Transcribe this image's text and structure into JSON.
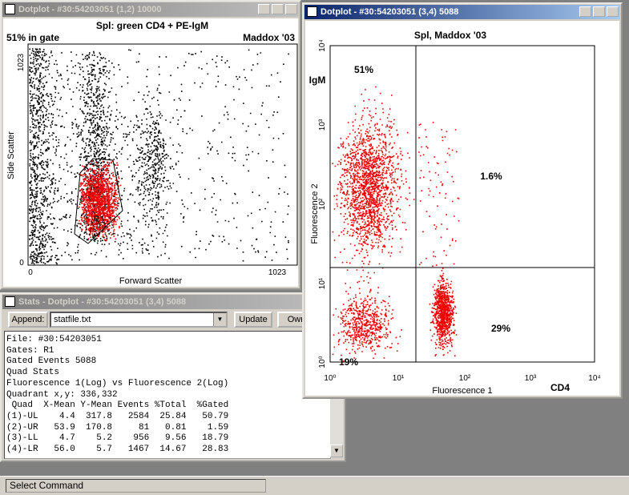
{
  "dotplot1": {
    "title_bar": "Dotplot - #30:54203051 (1,2) 10000",
    "plot_title": "Spl:  green CD4 + PE-IgM",
    "gate_percent": "51% in gate",
    "author": "Maddox '03",
    "y_axis_label": "Side Scatter",
    "x_axis_label": "Forward Scatter",
    "x_ticks": [
      "0",
      "1023"
    ],
    "y_ticks": [
      "0",
      "1023"
    ],
    "gate_label": "R1"
  },
  "dotplot2": {
    "title_bar": "Dotplot - #30:54203051 (3,4) 5088",
    "plot_title": "Spl, Maddox '03",
    "x_axis_label": "Fluorescence 1",
    "y_axis_label": "Fluorescence 2",
    "x_ticks": [
      "10⁰",
      "10¹",
      "10²",
      "10³",
      "10⁴"
    ],
    "y_ticks": [
      "10⁰",
      "10¹",
      "10²",
      "10³",
      "10⁴"
    ],
    "quadrant_labels": [
      "51%",
      "1.6%",
      "19%",
      "29%"
    ],
    "y_marker": "IgM",
    "x_marker": "CD4"
  },
  "stats": {
    "title_bar": "Stats - Dotplot - #30:54203051 (3,4) 5088",
    "append_button": "Append:",
    "file_field": "statfile.txt",
    "update_button": "Update",
    "own_button": "Own",
    "lines": [
      "File: #30:54203051",
      "Gates: R1",
      "Gated Events 5088",
      "Quad Stats",
      "Fluorescence 1(Log) vs Fluorescence 2(Log)",
      "Quadrant x,y: 336,332",
      " Quad  X-Mean Y-Mean Events %Total  %Gated",
      "(1)-UL    4.4  317.8   2584  25.84   50.79",
      "(2)-UR   53.9  170.8     81   0.81    1.59",
      "(3)-LL    4.7    5.2    956   9.56   18.79",
      "(4)-LR   56.0    5.7   1467  14.67   28.83"
    ]
  },
  "status_bar": "Select Command"
}
